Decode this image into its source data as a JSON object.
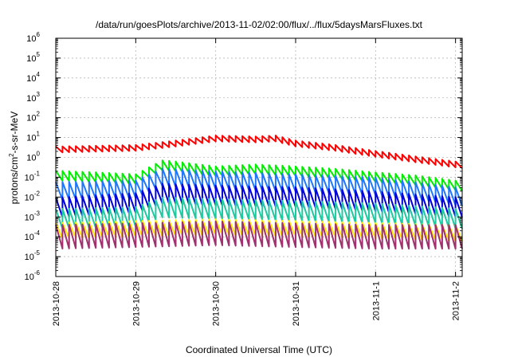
{
  "chart_data": {
    "type": "line",
    "title": "/data/run/goesPlots/archive/2013-11-02/02:00/flux/../flux/5daysMarsFluxes.txt",
    "xlabel": "Coordinated Universal Time (UTC)",
    "ylabel_base": "protons/cm",
    "ylabel_sup": "2",
    "ylabel_rest": "-s-sr-MeV",
    "ylabel": "protons/cm2-s-sr-MeV",
    "yscale": "log",
    "ylim": [
      1e-06,
      1000000.0
    ],
    "xlim": [
      "2013-10-28",
      "2013-11-02 02:00"
    ],
    "x_tick_dates": [
      "2013-10-28",
      "2013-10-29",
      "2013-10-30",
      "2013-10-31",
      "2013-11-1",
      "2013-11-2"
    ],
    "y_tick_exponents": [
      "-6",
      "-5",
      "-4",
      "-3",
      "-2",
      "-1",
      "0",
      "1",
      "2",
      "3",
      "4",
      "5",
      "6"
    ],
    "y_tick_base": "10",
    "grid": true,
    "legend": "none",
    "sawtooth_period_hours": 2,
    "series": [
      {
        "color": "#ff0000",
        "x": [
          "2013-10-28 00:00",
          "2013-10-29 00:00",
          "2013-10-29 12:00",
          "2013-10-30 00:00",
          "2013-10-30 12:00",
          "2013-10-30 18:00",
          "2013-10-31 00:00",
          "2013-10-31 12:00",
          "2013-11-1 00:00",
          "2013-11-1 12:00",
          "2013-11-2 02:00"
        ],
        "y": [
          2.5,
          3,
          5,
          9,
          8,
          9,
          5,
          3,
          1.5,
          0.8,
          0.4
        ],
        "amplitude": 0.3
      },
      {
        "color": "#00ee00",
        "x": [
          "2013-10-28 00:00",
          "2013-10-28 12:00",
          "2013-10-29 00:00",
          "2013-10-29 08:00",
          "2013-10-29 12:00",
          "2013-10-30 00:00",
          "2013-10-30 12:00",
          "2013-10-31 00:00",
          "2013-10-31 12:00",
          "2013-11-1 00:00",
          "2013-11-1 12:00",
          "2013-11-2 02:00"
        ],
        "y": [
          0.12,
          0.1,
          0.08,
          0.4,
          0.35,
          0.2,
          0.25,
          0.2,
          0.15,
          0.1,
          0.07,
          0.035
        ],
        "amplitude": 0.5
      },
      {
        "color": "#1f77ff",
        "x": [
          "2013-10-28 00:00",
          "2013-10-29 00:00",
          "2013-10-29 08:00",
          "2013-10-30 00:00",
          "2013-10-30 12:00",
          "2013-10-31 00:00",
          "2013-11-1 00:00",
          "2013-11-1 12:00",
          "2013-11-2 02:00"
        ],
        "y": [
          0.02,
          0.025,
          0.1,
          0.07,
          0.06,
          0.05,
          0.035,
          0.02,
          0.01
        ],
        "amplitude": 0.9
      },
      {
        "color": "#0000dd",
        "x": [
          "2013-10-28 00:00",
          "2013-10-29 00:00",
          "2013-10-29 08:00",
          "2013-10-30 00:00",
          "2013-10-31 00:00",
          "2013-11-1 00:00",
          "2013-11-2 02:00"
        ],
        "y": [
          0.003,
          0.005,
          0.015,
          0.012,
          0.01,
          0.006,
          0.003
        ],
        "amplitude": 1.0
      },
      {
        "color": "#20c8a0",
        "x": [
          "2013-10-28 00:00",
          "2013-10-29 00:00",
          "2013-10-29 08:00",
          "2013-10-30 00:00",
          "2013-10-31 00:00",
          "2013-11-1 00:00",
          "2013-11-2 02:00"
        ],
        "y": [
          0.0008,
          0.001,
          0.003,
          0.0025,
          0.002,
          0.0015,
          0.0008
        ],
        "amplitude": 1.0
      },
      {
        "color": "#ffee00",
        "x": [
          "2013-10-28 00:00",
          "2013-10-29 00:00",
          "2013-10-30 00:00",
          "2013-10-31 00:00",
          "2013-11-1 00:00",
          "2013-11-2 02:00"
        ],
        "y": [
          0.0002,
          0.00025,
          0.0003,
          0.00025,
          0.0002,
          0.00015
        ],
        "amplitude": 0.8
      },
      {
        "color": "#a0306e",
        "x": [
          "2013-10-28 00:00",
          "2013-10-29 00:00",
          "2013-10-30 00:00",
          "2013-10-31 00:00",
          "2013-11-1 00:00",
          "2013-11-2 02:00"
        ],
        "y": [
          0.0001,
          0.00012,
          0.00015,
          0.00012,
          0.0001,
          0.0001
        ],
        "amplitude": 1.2
      }
    ]
  }
}
